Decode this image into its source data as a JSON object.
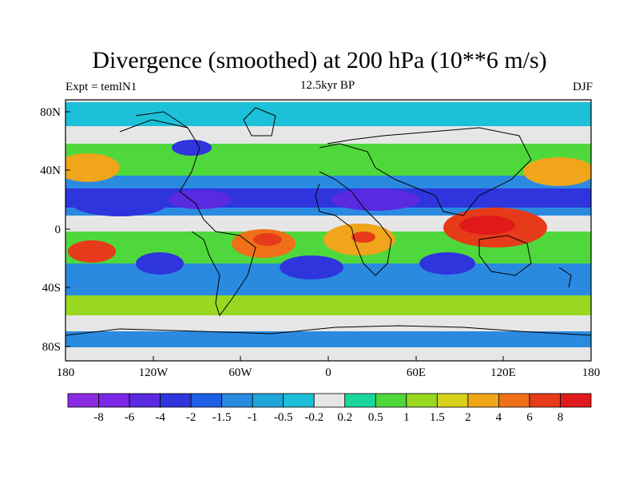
{
  "title": "Divergence (smoothed) at 200 hPa (10**6 m/s)",
  "subtitle_left": "Expt = temlN1",
  "subtitle_center": "12.5kyr BP",
  "subtitle_right": "DJF",
  "lat_ticks": [
    "80N",
    "40N",
    "0",
    "40S",
    "80S"
  ],
  "lon_ticks": [
    "180",
    "120W",
    "60W",
    "0",
    "60E",
    "120E",
    "180"
  ],
  "colorbar": {
    "labels": [
      "-8",
      "-6",
      "-4",
      "-2",
      "-1.5",
      "-1",
      "-0.5",
      "-0.2",
      "0.2",
      "0.5",
      "1",
      "1.5",
      "2",
      "4",
      "6",
      "8"
    ],
    "colors": [
      "#8b2be2",
      "#7a27e6",
      "#5a2ae0",
      "#2f35dd",
      "#1f5fe6",
      "#2a8ae0",
      "#1fa6d8",
      "#1cc0d8",
      "#e6e6e6",
      "#19d79a",
      "#4fd83c",
      "#98d820",
      "#d6d11a",
      "#f0a51a",
      "#f0701a",
      "#e63b1a",
      "#e01a1a"
    ]
  },
  "map_colors": {
    "ocean_neutral": "#e6e6e6",
    "coast": "#000000"
  }
}
